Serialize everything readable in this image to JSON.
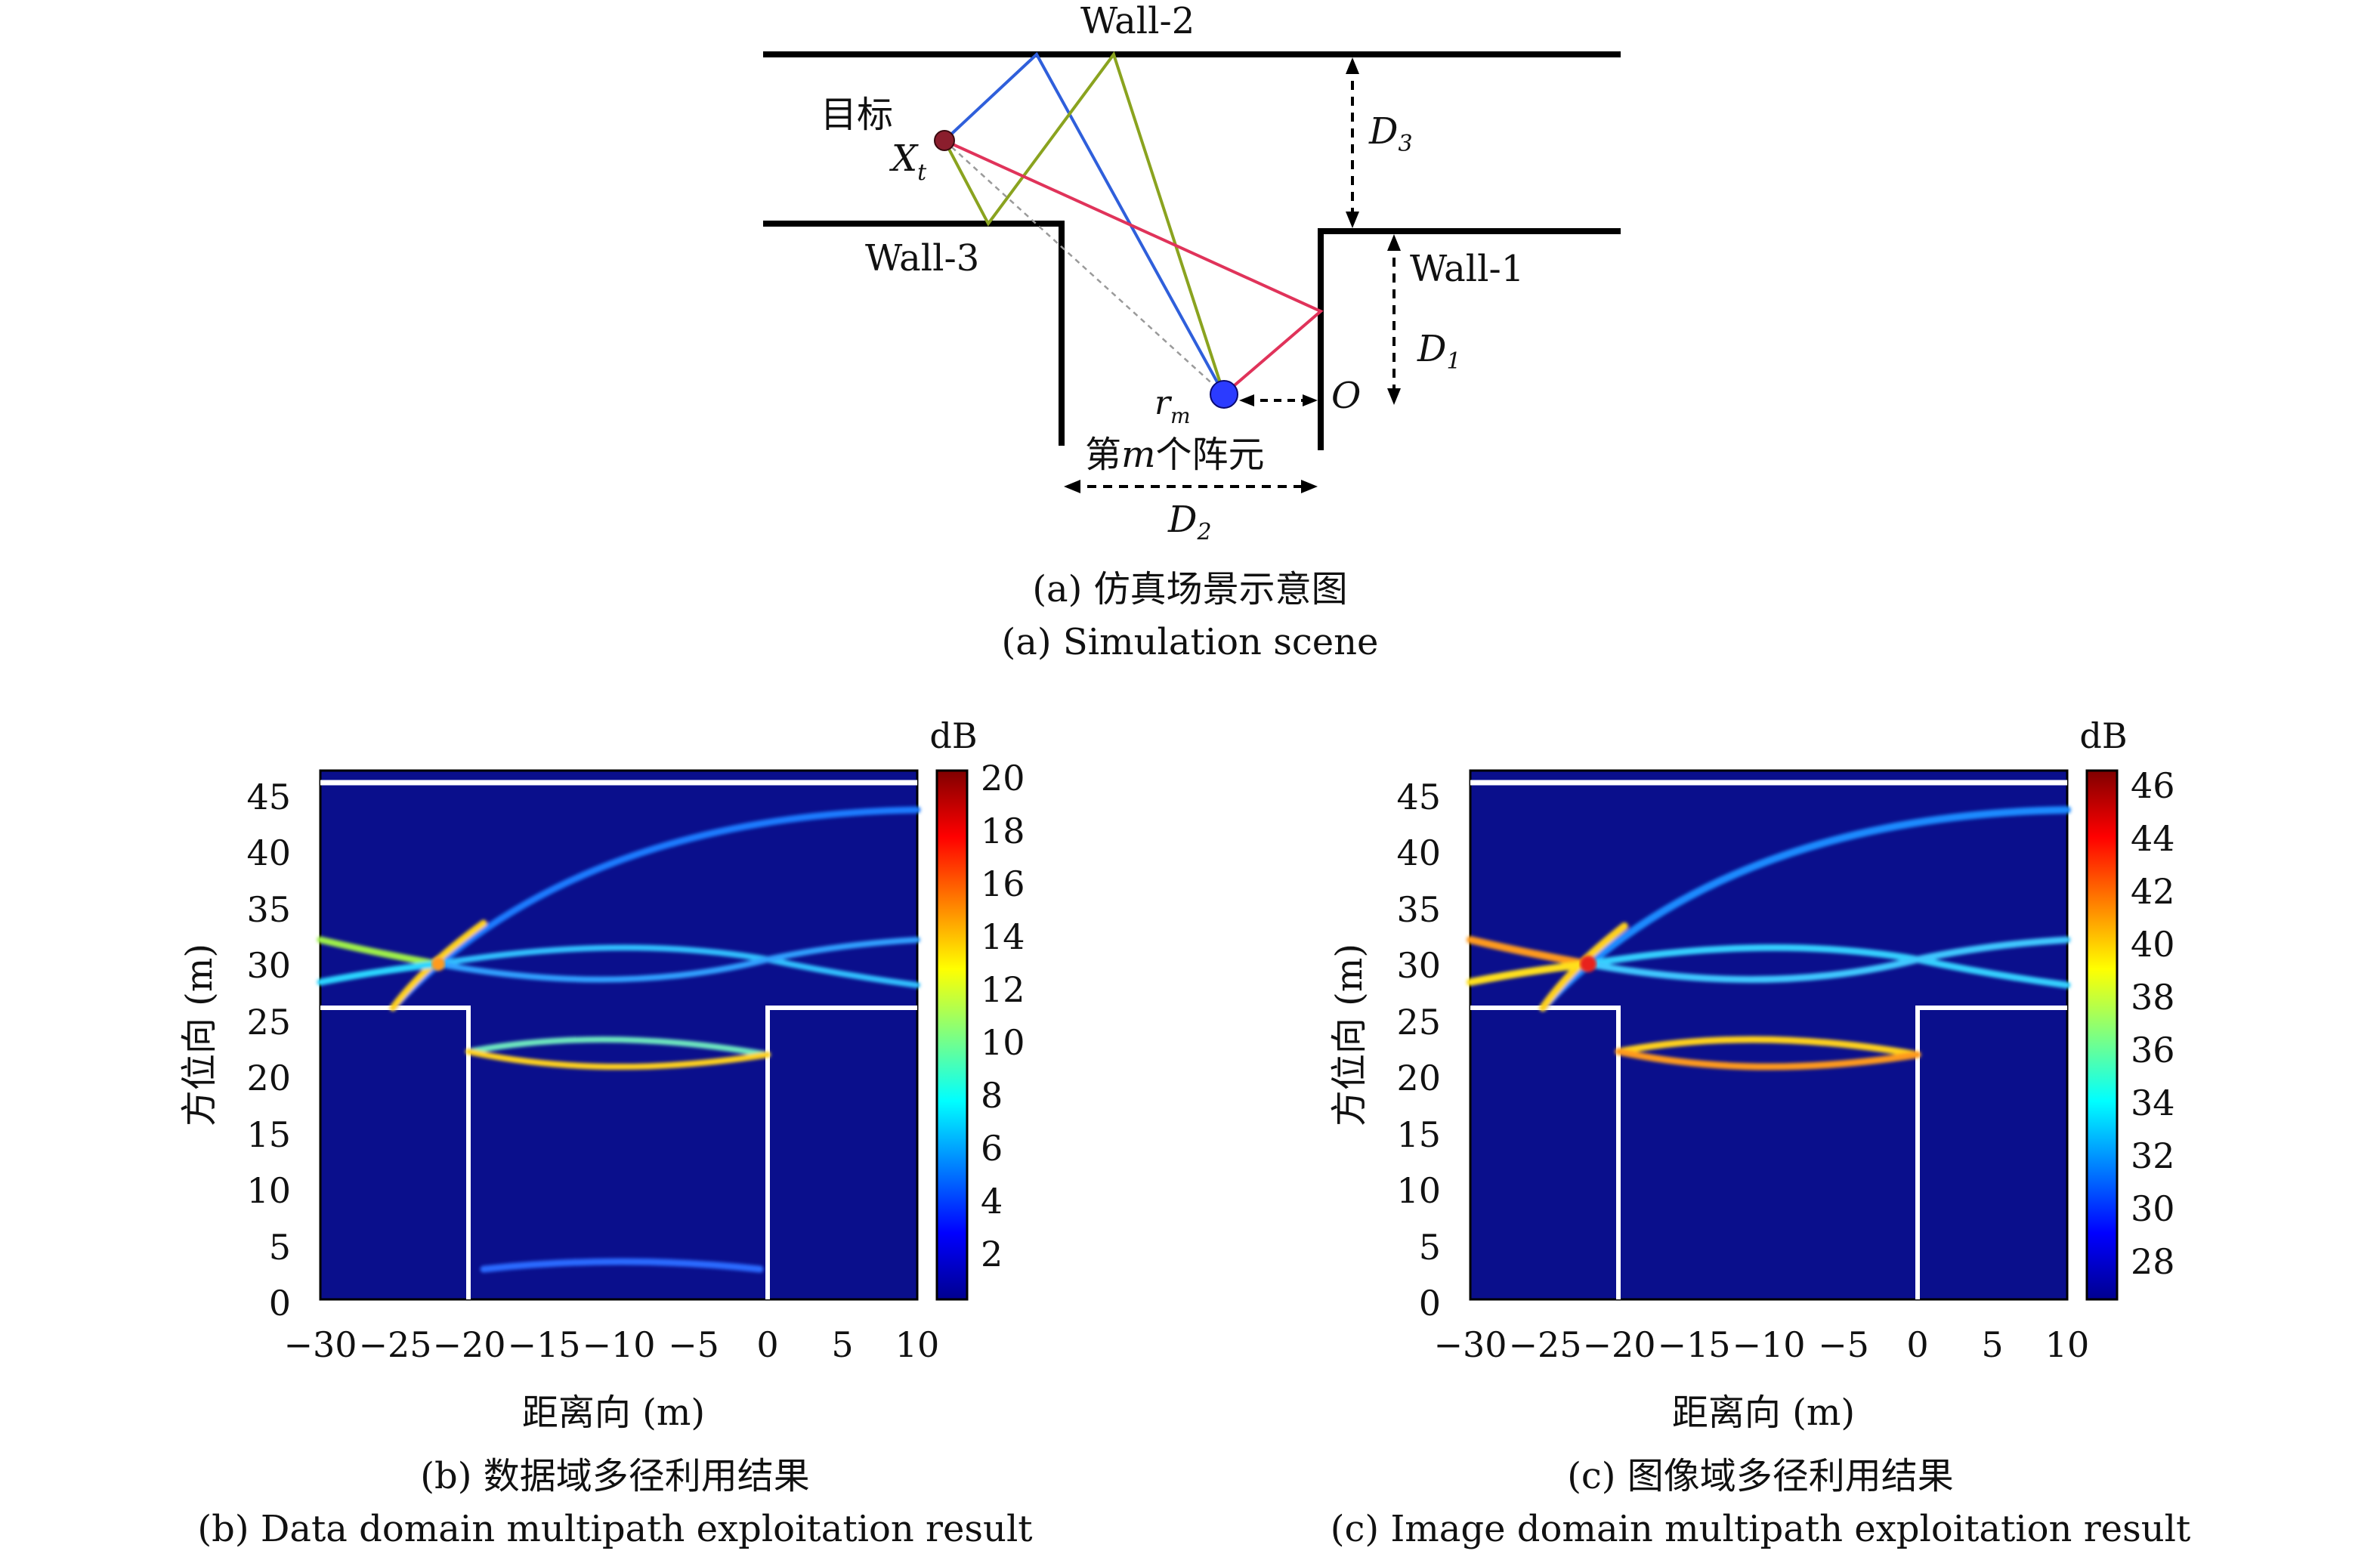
{
  "scene": {
    "wall2_label": "Wall-2",
    "wall3_label": "Wall-3",
    "wall1_label": "Wall-1",
    "target_label": "目标",
    "xt_main": "X",
    "xt_sub": "t",
    "rm_main": "r",
    "rm_sub": "m",
    "origin_label": "O",
    "d1_main": "D",
    "d1_sub": "1",
    "d2_main": "D",
    "d2_sub": "2",
    "d3_main": "D",
    "d3_sub": "3",
    "element_label_pre": "第",
    "element_label_m": "m",
    "element_label_post": "个阵元",
    "caption_zh": "(a) 仿真场景示意图",
    "caption_en": "(a) Simulation scene",
    "colors": {
      "blue": "#2f5fdb",
      "green": "#8aa31f",
      "red": "#e0335a",
      "gray": "#9a9a9a",
      "target": "#8b1e2d",
      "element": "#2b3bff"
    }
  },
  "plots": [
    {
      "id": "b",
      "ylabel": "方位向 (m)",
      "xlabel": "距离向 (m)",
      "cbar_unit": "dB",
      "cbar_ticks": [
        "20",
        "18",
        "16",
        "14",
        "12",
        "10",
        "8",
        "6",
        "4",
        "2"
      ],
      "xticks": [
        "−30",
        "−25",
        "−20",
        "−15",
        "−10",
        "−5",
        "0",
        "5",
        "10"
      ],
      "yticks": [
        "45",
        "40",
        "35",
        "30",
        "25",
        "20",
        "15",
        "10",
        "5",
        "0"
      ],
      "caption_zh": "(b) 数据域多径利用结果",
      "caption_en": "(b) Data domain multipath exploitation result"
    },
    {
      "id": "c",
      "ylabel": "方位向 (m)",
      "xlabel": "距离向 (m)",
      "cbar_unit": "dB",
      "cbar_ticks": [
        "46",
        "44",
        "42",
        "40",
        "38",
        "36",
        "34",
        "32",
        "30",
        "28"
      ],
      "xticks": [
        "−30",
        "−25",
        "−20",
        "−15",
        "−10",
        "−5",
        "0",
        "5",
        "10"
      ],
      "yticks": [
        "45",
        "40",
        "35",
        "30",
        "25",
        "20",
        "15",
        "10",
        "5",
        "0"
      ],
      "caption_zh": "(c) 图像域多径利用结果",
      "caption_en": "(c) Image domain multipath exploitation result"
    }
  ],
  "colormap": "jet",
  "background_color": "#0a0f8c"
}
